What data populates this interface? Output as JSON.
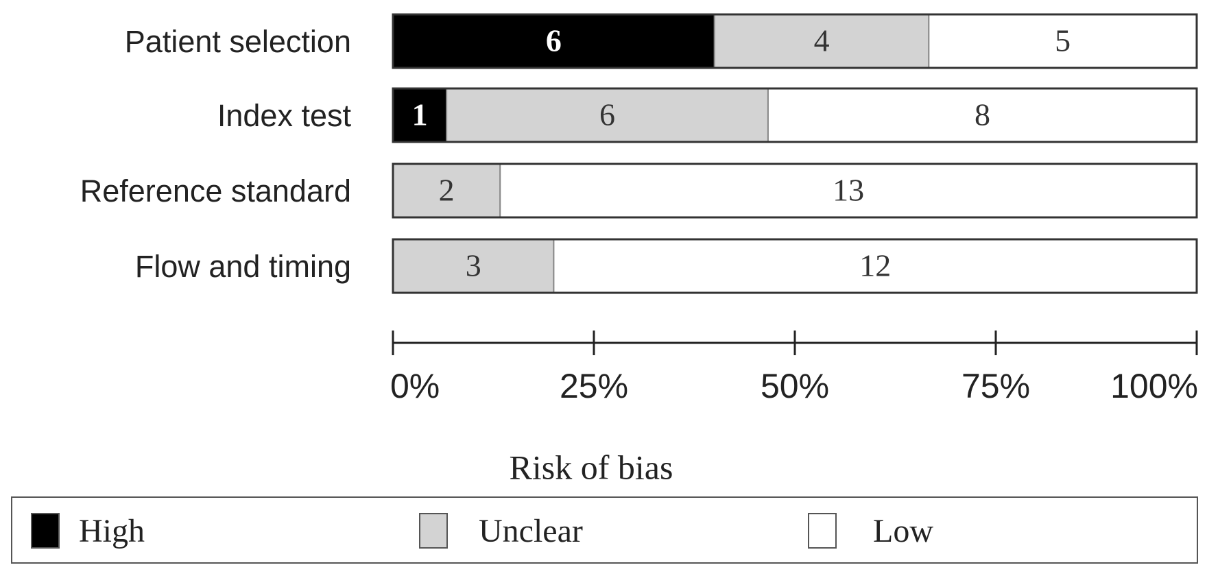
{
  "chart_data": {
    "type": "stacked_bar_horizontal",
    "percent_stacked": true,
    "categories": [
      "Patient selection",
      "Index test",
      "Reference standard",
      "Flow and timing"
    ],
    "series": [
      {
        "name": "High",
        "color": "#000000",
        "values": [
          6,
          1,
          0,
          0
        ]
      },
      {
        "name": "Unclear",
        "color": "#d3d3d3",
        "values": [
          4,
          6,
          2,
          3
        ]
      },
      {
        "name": "Low",
        "color": "#ffffff",
        "values": [
          5,
          8,
          13,
          12
        ]
      }
    ],
    "xlim": [
      0,
      100
    ],
    "xticks": [
      {
        "value": 0,
        "label": "0%"
      },
      {
        "value": 25,
        "label": "25%"
      },
      {
        "value": 50,
        "label": "50%"
      },
      {
        "value": 75,
        "label": "75%"
      },
      {
        "value": 100,
        "label": "100%"
      }
    ],
    "legend_title": "Risk of bias",
    "legend": "bottom"
  }
}
